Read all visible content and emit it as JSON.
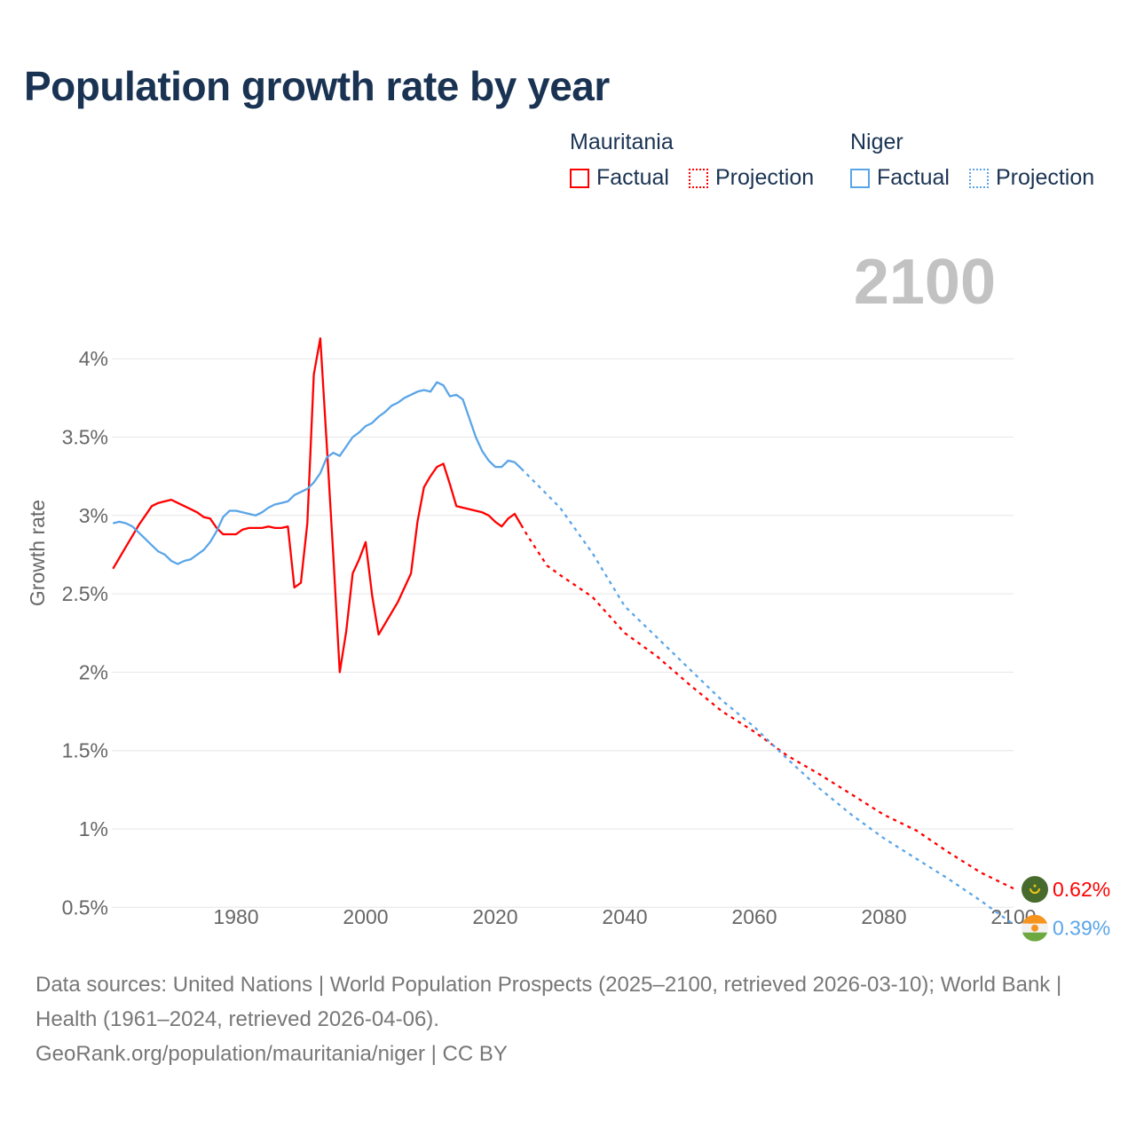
{
  "title": "Population growth rate by year",
  "legend": {
    "groups": [
      {
        "name": "Mauritania",
        "factual": "Factual",
        "projection": "Projection",
        "color": "#ff0000"
      },
      {
        "name": "Niger",
        "factual": "Factual",
        "projection": "Projection",
        "color": "#5aa5e8"
      }
    ]
  },
  "year_label": "2100",
  "footer": {
    "sources": "Data sources: United Nations | World Population Prospects (2025–2100, retrieved 2026-03-10); World Bank | Health (1961–2024, retrieved 2026-04-06).",
    "credit": "GeoRank.org/population/mauritania/niger | CC BY"
  },
  "chart_data": {
    "type": "line",
    "title": "Population growth rate by year",
    "xlabel": "",
    "ylabel": "Growth rate",
    "xlim": [
      1961,
      2100
    ],
    "ylim": [
      0,
      4.2
    ],
    "x_ticks": [
      1980,
      2000,
      2020,
      2040,
      2060,
      2080,
      2100
    ],
    "y_ticks": [
      0.5,
      1,
      1.5,
      2,
      2.5,
      3,
      3.5,
      4
    ],
    "y_tick_labels": [
      "0.5%",
      "1%",
      "1.5%",
      "2%",
      "2.5%",
      "3%",
      "3.5%",
      "4%"
    ],
    "grid": true,
    "series": [
      {
        "name": "Mauritania",
        "color": "#ff0000",
        "end_label": "0.62%",
        "factual": {
          "x": [
            1961,
            1962,
            1963,
            1964,
            1965,
            1966,
            1967,
            1968,
            1969,
            1970,
            1971,
            1972,
            1973,
            1974,
            1975,
            1976,
            1977,
            1978,
            1979,
            1980,
            1981,
            1982,
            1983,
            1984,
            1985,
            1986,
            1987,
            1988,
            1989,
            1990,
            1991,
            1992,
            1993,
            1994,
            1995,
            1996,
            1997,
            1998,
            1999,
            2000,
            2001,
            2002,
            2003,
            2004,
            2005,
            2006,
            2007,
            2008,
            2009,
            2010,
            2011,
            2012,
            2013,
            2014,
            2015,
            2016,
            2017,
            2018,
            2019,
            2020,
            2021,
            2022,
            2023,
            2024
          ],
          "y": [
            2.66,
            2.73,
            2.8,
            2.87,
            2.94,
            3.0,
            3.06,
            3.08,
            3.09,
            3.1,
            3.08,
            3.06,
            3.04,
            3.02,
            2.99,
            2.98,
            2.92,
            2.88,
            2.88,
            2.88,
            2.91,
            2.92,
            2.92,
            2.92,
            2.93,
            2.92,
            2.92,
            2.93,
            2.54,
            2.57,
            2.95,
            3.9,
            4.13,
            3.45,
            2.75,
            2.0,
            2.26,
            2.63,
            2.72,
            2.83,
            2.49,
            2.24,
            2.31,
            2.38,
            2.45,
            2.54,
            2.63,
            2.96,
            3.18,
            3.25,
            3.31,
            3.33,
            3.2,
            3.06,
            3.05,
            3.04,
            3.03,
            3.02,
            3.0,
            2.96,
            2.93,
            2.98,
            3.01,
            2.94
          ]
        },
        "projection": {
          "x": [
            2024,
            2025,
            2028,
            2030,
            2035,
            2040,
            2045,
            2050,
            2055,
            2060,
            2065,
            2070,
            2075,
            2080,
            2085,
            2090,
            2095,
            2100
          ],
          "y": [
            2.94,
            2.87,
            2.68,
            2.62,
            2.48,
            2.25,
            2.1,
            1.92,
            1.75,
            1.62,
            1.47,
            1.35,
            1.22,
            1.09,
            0.99,
            0.85,
            0.72,
            0.62
          ]
        }
      },
      {
        "name": "Niger",
        "color": "#5aa5e8",
        "end_label": "0.39%",
        "factual": {
          "x": [
            1961,
            1962,
            1963,
            1964,
            1965,
            1966,
            1967,
            1968,
            1969,
            1970,
            1971,
            1972,
            1973,
            1974,
            1975,
            1976,
            1977,
            1978,
            1979,
            1980,
            1981,
            1982,
            1983,
            1984,
            1985,
            1986,
            1987,
            1988,
            1989,
            1990,
            1991,
            1992,
            1993,
            1994,
            1995,
            1996,
            1997,
            1998,
            1999,
            2000,
            2001,
            2002,
            2003,
            2004,
            2005,
            2006,
            2007,
            2008,
            2009,
            2010,
            2011,
            2012,
            2013,
            2014,
            2015,
            2016,
            2017,
            2018,
            2019,
            2020,
            2021,
            2022,
            2023,
            2024
          ],
          "y": [
            2.95,
            2.96,
            2.95,
            2.93,
            2.89,
            2.85,
            2.81,
            2.77,
            2.75,
            2.71,
            2.69,
            2.71,
            2.72,
            2.75,
            2.78,
            2.83,
            2.9,
            2.99,
            3.03,
            3.03,
            3.02,
            3.01,
            3.0,
            3.02,
            3.05,
            3.07,
            3.08,
            3.09,
            3.13,
            3.15,
            3.17,
            3.21,
            3.27,
            3.37,
            3.4,
            3.38,
            3.44,
            3.5,
            3.53,
            3.57,
            3.59,
            3.63,
            3.66,
            3.7,
            3.72,
            3.75,
            3.77,
            3.79,
            3.8,
            3.79,
            3.85,
            3.83,
            3.76,
            3.77,
            3.74,
            3.62,
            3.5,
            3.41,
            3.35,
            3.31,
            3.31,
            3.35,
            3.34,
            3.3
          ]
        },
        "projection": {
          "x": [
            2024,
            2030,
            2035,
            2040,
            2045,
            2050,
            2055,
            2060,
            2065,
            2070,
            2075,
            2080,
            2085,
            2090,
            2095,
            2100
          ],
          "y": [
            3.3,
            3.05,
            2.76,
            2.42,
            2.22,
            2.02,
            1.82,
            1.65,
            1.45,
            1.26,
            1.09,
            0.94,
            0.81,
            0.68,
            0.54,
            0.39
          ]
        }
      }
    ]
  }
}
